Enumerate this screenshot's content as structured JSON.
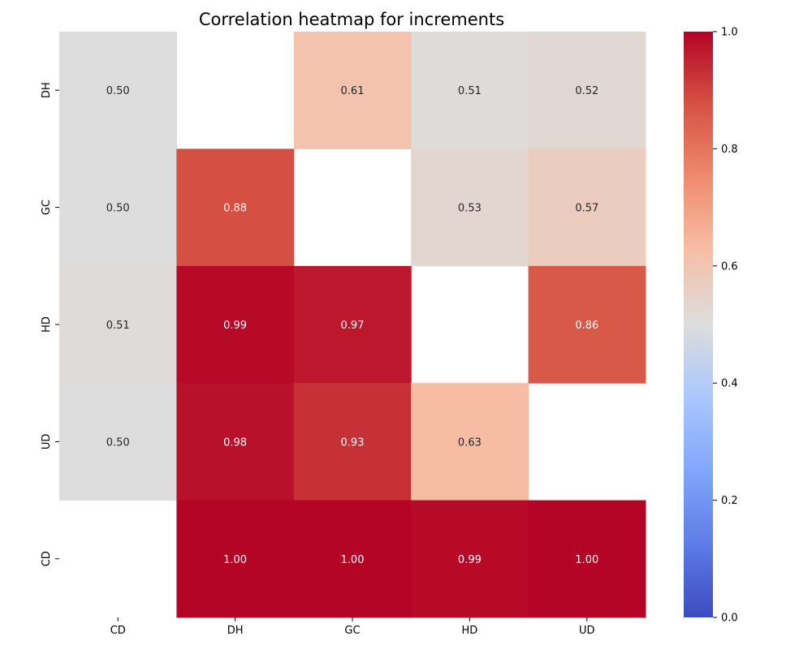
{
  "chart_data": {
    "type": "heatmap",
    "title": "Correlation heatmap for increments",
    "x_categories": [
      "CD",
      "DH",
      "GC",
      "HD",
      "UD"
    ],
    "y_categories": [
      "DH",
      "GC",
      "HD",
      "UD",
      "CD"
    ],
    "values": [
      [
        0.5,
        null,
        0.61,
        0.51,
        0.52
      ],
      [
        0.5,
        0.88,
        null,
        0.53,
        0.57
      ],
      [
        0.51,
        0.99,
        0.97,
        null,
        0.86
      ],
      [
        0.5,
        0.98,
        0.93,
        0.63,
        null
      ],
      [
        null,
        1.0,
        1.0,
        0.99,
        1.0
      ]
    ],
    "value_format": "2dp",
    "colormap": "coolwarm",
    "colorbar": {
      "vmin": 0.0,
      "vmax": 1.0,
      "ticks": [
        0.0,
        0.2,
        0.4,
        0.6,
        0.8,
        1.0
      ],
      "tick_labels": [
        "0.0",
        "0.2",
        "0.4",
        "0.6",
        "0.8",
        "1.0"
      ]
    },
    "xlabel": "",
    "ylabel": "",
    "grid": false
  }
}
